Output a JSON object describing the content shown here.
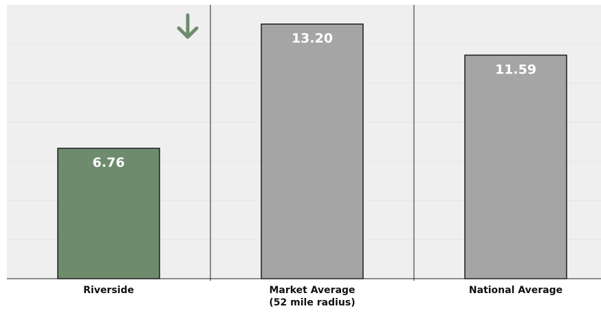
{
  "chart_data": {
    "type": "bar",
    "categories": [
      "Riverside",
      "Market Average\n(52 mile radius)",
      "National Average"
    ],
    "values": [
      6.76,
      13.2,
      11.59
    ],
    "value_labels": [
      "6.76",
      "13.20",
      "11.59"
    ],
    "ylim": [
      0,
      14.2
    ],
    "grid": true,
    "legend": "none"
  },
  "colors": {
    "highlight_bar": "#6e8c6d",
    "comparison_bar": "#a5a5a5",
    "plot_background": "#efefef",
    "gridline": "#dfe8e4",
    "indicator_arrow": "#6e8c6d"
  },
  "indicator": {
    "icon": "arrow-down-icon",
    "meaning": "lower than market average"
  }
}
